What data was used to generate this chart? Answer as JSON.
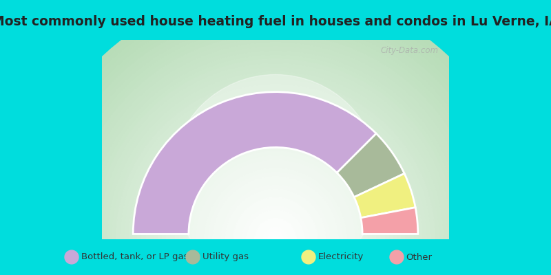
{
  "title": "Most commonly used house heating fuel in houses and condos in Lu Verne, IA",
  "segments": [
    {
      "label": "Bottled, tank, or LP gas",
      "value": 75,
      "color": "#C9A8D8"
    },
    {
      "label": "Utility gas",
      "value": 11,
      "color": "#A8BA9A"
    },
    {
      "label": "Electricity",
      "value": 8,
      "color": "#F0F080"
    },
    {
      "label": "Other",
      "value": 6,
      "color": "#F4A0A8"
    }
  ],
  "bg_top": "#00DDDD",
  "bg_chart": "#B8DDB8",
  "bg_legend": "#00DDDD",
  "title_color": "#222222",
  "legend_text_color": "#333333",
  "title_fontsize": 13.5,
  "legend_fontsize": 9.5,
  "watermark": "City-Data.com"
}
